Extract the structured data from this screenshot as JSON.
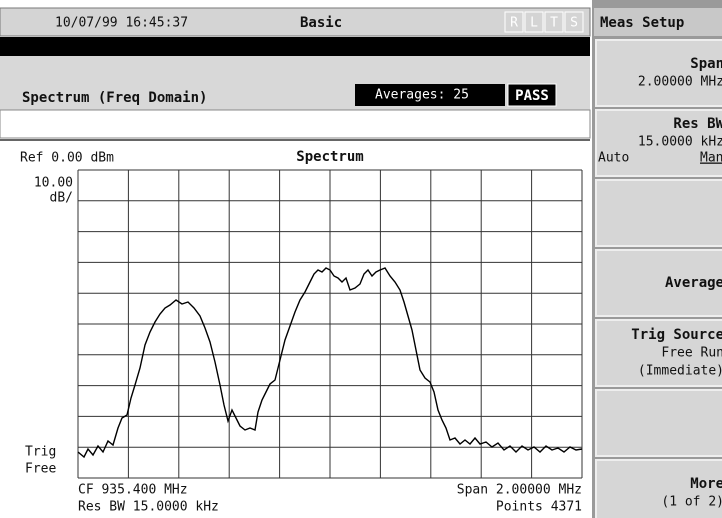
{
  "header": {
    "datetime": "10/07/99 16:45:37",
    "mode": "Basic",
    "indicators": [
      "R",
      "L",
      "T",
      "S"
    ],
    "menu_title": "Meas Setup"
  },
  "measurement": {
    "name": "Spectrum (Freq Domain)",
    "averages": "Averages: 25",
    "status": "PASS"
  },
  "display": {
    "ref_level": "Ref 0.00 dBm",
    "title": "Spectrum",
    "scale": [
      "10.00",
      "dB/"
    ],
    "trigger": [
      "Trig",
      "Free"
    ],
    "center_freq": "CF 935.400 MHz",
    "res_bw": "Res BW 15.0000 kHz",
    "span": "Span  2.00000 MHz",
    "points": "Points 4371"
  },
  "softkeys": [
    {
      "label": "Span",
      "value": "2.00000 MHz"
    },
    {
      "label": "Res BW",
      "value": "15.0000 kHz",
      "options": [
        "Auto",
        "Man"
      ]
    },
    {},
    {
      "label": "Average"
    },
    {
      "label": "Trig Source",
      "value": "Free Run",
      "detail": "(Immediate)"
    },
    {},
    {
      "label": "More",
      "value": "(1 of 2)"
    }
  ]
}
